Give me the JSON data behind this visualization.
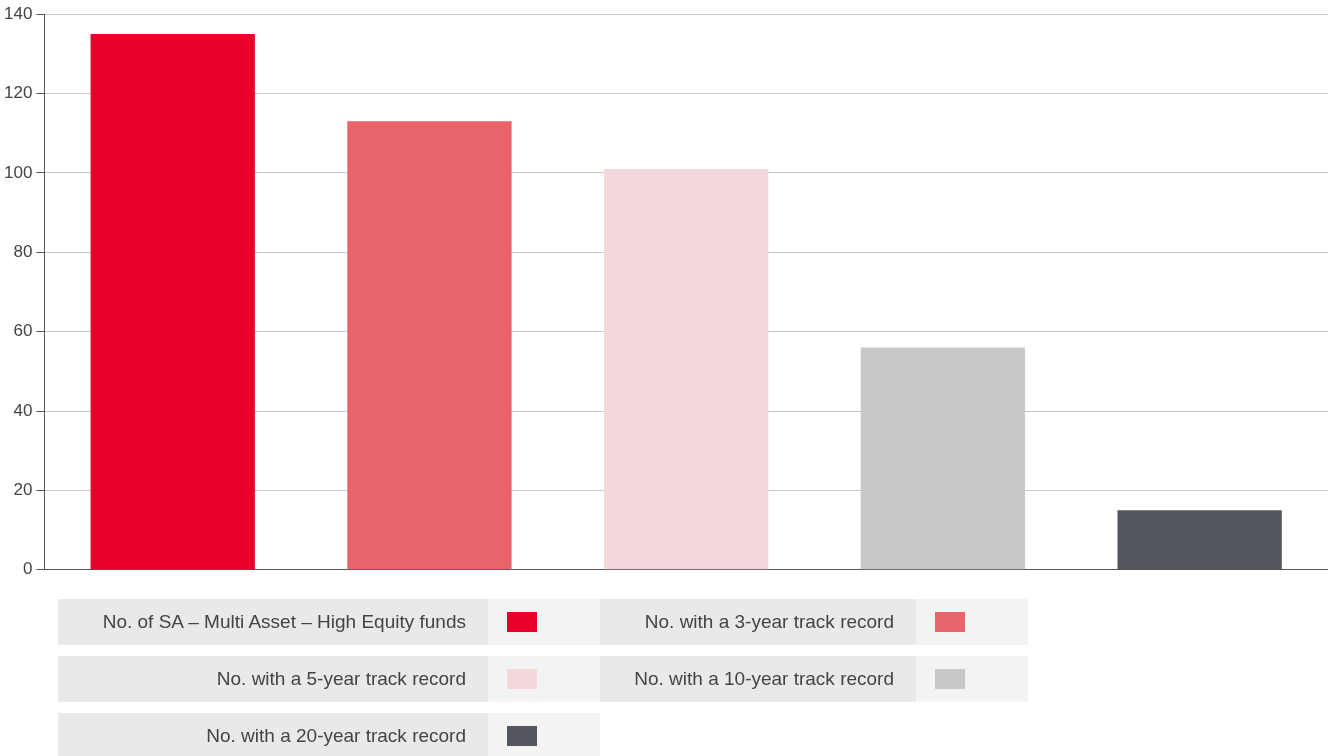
{
  "chart_data": {
    "type": "bar",
    "categories": [
      null
    ],
    "series": [
      {
        "name": "No. of SA – Multi Asset – High Equity funds",
        "color": "#e8002a",
        "values": [
          135
        ]
      },
      {
        "name": "No. with a 3-year track record",
        "color": "#e9636a",
        "values": [
          113
        ]
      },
      {
        "name": "No. with a 5-year track record",
        "color": "#f4d7da",
        "values": [
          101
        ]
      },
      {
        "name": "No. with a 10-year track record",
        "color": "#c7c8ca",
        "values": [
          56
        ]
      },
      {
        "name": "No. with a 20-year track record",
        "color": "#53565d",
        "values": [
          15
        ]
      }
    ],
    "ylim": [
      0,
      140
    ],
    "yticks": [
      0,
      20,
      40,
      60,
      80,
      100,
      120,
      140
    ],
    "grid": "y",
    "legend": "bottom"
  }
}
